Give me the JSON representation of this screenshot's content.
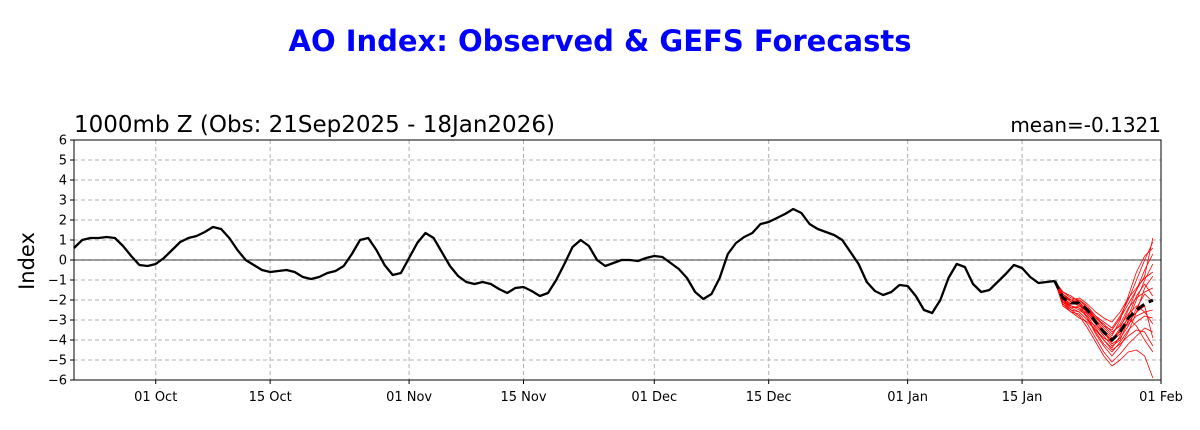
{
  "chart_data": {
    "type": "line",
    "suptitle": "AO Index: Observed & GEFS Forecasts",
    "title_left": "1000mb Z (Obs: 21Sep2025 - 18Jan2026)",
    "title_right": "mean=-0.1321",
    "ylabel": "Index",
    "ylim": [
      -6,
      6
    ],
    "yticks": [
      "−6",
      "−5",
      "−4",
      "−3",
      "−2",
      "−1",
      "0",
      "1",
      "2",
      "3",
      "4",
      "5",
      "6"
    ],
    "ytick_values": [
      -6,
      -5,
      -4,
      -3,
      -2,
      -1,
      0,
      1,
      2,
      3,
      4,
      5,
      6
    ],
    "xlim_days": [
      0,
      133
    ],
    "xticks": [
      {
        "label": "01 Oct",
        "day": 10
      },
      {
        "label": "15 Oct",
        "day": 24
      },
      {
        "label": "01 Nov",
        "day": 41
      },
      {
        "label": "15 Nov",
        "day": 55
      },
      {
        "label": "01 Dec",
        "day": 71
      },
      {
        "label": "15 Dec",
        "day": 85
      },
      {
        "label": "01 Jan",
        "day": 102
      },
      {
        "label": "15 Jan",
        "day": 116
      },
      {
        "label": "01 Feb",
        "day": 133
      }
    ],
    "grid": true,
    "zero_line": true,
    "colors": {
      "observed": "#000000",
      "ensemble": "#ff0000",
      "ens_mean": "#000000",
      "suptitle": "#0000ff"
    },
    "observed": {
      "start_day": 0,
      "values": [
        0.6,
        1.0,
        1.1,
        1.1,
        1.15,
        1.1,
        0.7,
        0.2,
        -0.25,
        -0.3,
        -0.2,
        0.1,
        0.5,
        0.9,
        1.1,
        1.2,
        1.4,
        1.65,
        1.55,
        1.1,
        0.5,
        0.0,
        -0.25,
        -0.5,
        -0.6,
        -0.55,
        -0.5,
        -0.6,
        -0.85,
        -0.95,
        -0.85,
        -0.65,
        -0.55,
        -0.3,
        0.3,
        1.0,
        1.1,
        0.5,
        -0.25,
        -0.75,
        -0.65,
        0.1,
        0.85,
        1.35,
        1.1,
        0.4,
        -0.3,
        -0.8,
        -1.1,
        -1.2,
        -1.1,
        -1.2,
        -1.45,
        -1.65,
        -1.4,
        -1.35,
        -1.55,
        -1.8,
        -1.65,
        -1.0,
        -0.2,
        0.65,
        1.0,
        0.7,
        0.0,
        -0.3,
        -0.15,
        0.0,
        0.0,
        -0.05,
        0.1,
        0.2,
        0.15,
        -0.15,
        -0.45,
        -0.9,
        -1.6,
        -1.95,
        -1.7,
        -0.9,
        0.3,
        0.85,
        1.15,
        1.35,
        1.8,
        1.9,
        2.1,
        2.3,
        2.55,
        2.35,
        1.8,
        1.55,
        1.4,
        1.25,
        1.0,
        0.4,
        -0.2,
        -1.1,
        -1.55,
        -1.75,
        -1.6,
        -1.25,
        -1.3,
        -1.8,
        -2.5,
        -2.65,
        -2.0,
        -0.9,
        -0.2,
        -0.35,
        -1.2,
        -1.6,
        -1.5,
        -1.1,
        -0.7,
        -0.25,
        -0.4,
        -0.85,
        -1.15,
        -1.1,
        -1.05
      ]
    },
    "ensemble_mean": {
      "start_day": 120,
      "values": [
        -1.05,
        -1.9,
        -2.15,
        -2.15,
        -2.5,
        -3.1,
        -3.6,
        -4.0,
        -3.6,
        -2.9,
        -2.5,
        -2.2,
        -2.0
      ]
    },
    "ensemble_members": [
      {
        "start_day": 120,
        "values": [
          -1.05,
          -1.6,
          -1.9,
          -2.0,
          -2.4,
          -2.9,
          -3.3,
          -3.7,
          -3.2,
          -2.4,
          -1.9,
          -1.6,
          -1.4
        ]
      },
      {
        "start_day": 120,
        "values": [
          -1.05,
          -2.1,
          -2.3,
          -2.4,
          -2.9,
          -3.6,
          -4.2,
          -4.6,
          -4.1,
          -3.5,
          -3.1,
          -2.8,
          -2.9
        ]
      },
      {
        "start_day": 120,
        "values": [
          -1.05,
          -1.8,
          -2.0,
          -1.9,
          -2.2,
          -2.6,
          -2.9,
          -3.1,
          -2.6,
          -1.9,
          -1.4,
          -0.9,
          -0.6
        ]
      },
      {
        "start_day": 120,
        "values": [
          -1.05,
          -2.3,
          -2.6,
          -2.7,
          -3.2,
          -3.9,
          -4.6,
          -5.1,
          -4.7,
          -4.2,
          -3.8,
          -3.4,
          -3.6
        ]
      },
      {
        "start_day": 120,
        "values": [
          -1.05,
          -1.7,
          -2.1,
          -2.3,
          -2.6,
          -3.0,
          -3.4,
          -3.8,
          -3.0,
          -1.8,
          -0.6,
          0.2,
          0.6
        ]
      },
      {
        "start_day": 120,
        "values": [
          -1.05,
          -2.0,
          -2.4,
          -2.6,
          -3.0,
          -3.3,
          -3.8,
          -4.3,
          -4.0,
          -3.0,
          -2.0,
          -1.0,
          -0.2
        ]
      },
      {
        "start_day": 120,
        "values": [
          -1.05,
          -1.9,
          -2.2,
          -2.0,
          -2.3,
          -2.8,
          -3.3,
          -3.5,
          -2.9,
          -2.2,
          -1.5,
          -0.8,
          1.1
        ]
      },
      {
        "start_day": 120,
        "values": [
          -1.05,
          -2.2,
          -2.5,
          -2.8,
          -3.4,
          -4.1,
          -4.8,
          -5.3,
          -5.0,
          -4.6,
          -4.5,
          -4.8,
          -5.9
        ]
      },
      {
        "start_day": 120,
        "values": [
          -1.05,
          -1.6,
          -1.8,
          -2.1,
          -2.7,
          -3.2,
          -3.7,
          -4.0,
          -3.4,
          -2.5,
          -1.5,
          -0.5,
          0.3
        ]
      },
      {
        "start_day": 120,
        "values": [
          -1.05,
          -2.0,
          -2.2,
          -2.2,
          -2.6,
          -3.1,
          -3.5,
          -3.9,
          -3.6,
          -3.2,
          -2.8,
          -2.6,
          -2.5
        ]
      },
      {
        "start_day": 120,
        "values": [
          -1.05,
          -1.8,
          -2.3,
          -2.5,
          -2.8,
          -3.4,
          -4.0,
          -4.4,
          -3.8,
          -2.8,
          -1.8,
          -1.2,
          -1.8
        ]
      },
      {
        "start_day": 120,
        "values": [
          -1.05,
          -2.1,
          -2.4,
          -2.3,
          -2.5,
          -2.9,
          -3.2,
          -3.6,
          -3.3,
          -2.7,
          -2.3,
          -2.6,
          -3.2
        ]
      },
      {
        "start_day": 120,
        "values": [
          -1.05,
          -1.9,
          -2.0,
          -2.2,
          -2.9,
          -3.7,
          -4.3,
          -4.8,
          -4.3,
          -3.6,
          -2.6,
          -1.4,
          -0.8
        ]
      },
      {
        "start_day": 120,
        "values": [
          -1.05,
          -2.2,
          -2.6,
          -2.9,
          -3.1,
          -3.5,
          -3.9,
          -4.1,
          -3.5,
          -2.9,
          -3.3,
          -4.0,
          -4.6
        ]
      },
      {
        "start_day": 120,
        "values": [
          -1.05,
          -1.7,
          -2.0,
          -2.1,
          -2.5,
          -3.0,
          -3.6,
          -4.2,
          -3.9,
          -3.3,
          -2.4,
          -1.7,
          -2.1
        ]
      },
      {
        "start_day": 120,
        "values": [
          -1.05,
          -2.0,
          -2.3,
          -2.4,
          -2.7,
          -3.2,
          -3.6,
          -4.0,
          -3.7,
          -3.1,
          -2.6,
          -2.3,
          -3.9
        ]
      },
      {
        "start_day": 120,
        "values": [
          -1.05,
          -1.8,
          -2.1,
          -2.0,
          -2.4,
          -2.8,
          -3.1,
          -3.4,
          -2.8,
          -2.0,
          -1.0,
          0.0,
          0.9
        ]
      },
      {
        "start_day": 120,
        "values": [
          -1.05,
          -2.1,
          -2.5,
          -2.6,
          -3.0,
          -3.5,
          -4.0,
          -4.5,
          -4.2,
          -3.8,
          -3.5,
          -3.6,
          -4.3
        ]
      }
    ]
  }
}
